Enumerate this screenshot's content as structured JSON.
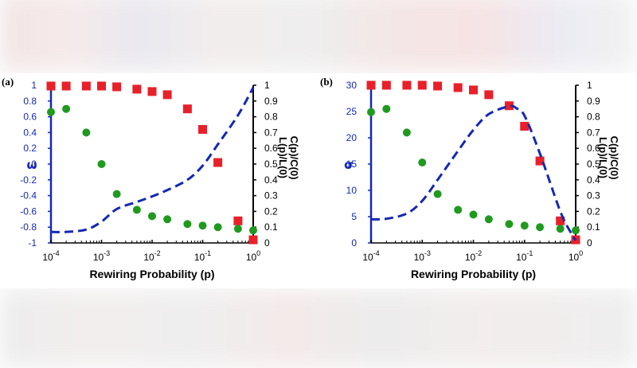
{
  "chart_data": [
    {
      "panel_label": "(a)",
      "type": "scatter+line",
      "xlabel": "Rewiring Probability (p)",
      "xscale": "log",
      "xlim": [
        0.0001,
        1
      ],
      "x_tick_base": [
        "10",
        "10",
        "10",
        "10",
        "10"
      ],
      "x_tick_exp": [
        "-4",
        "-3",
        "-2",
        "-1",
        "0"
      ],
      "x_tick_values": [
        0.0001,
        0.001,
        0.01,
        0.1,
        1
      ],
      "left_axis": {
        "label": "ω",
        "ylim": [
          -1,
          1
        ],
        "ticks": [
          1,
          0.8,
          0.6,
          0.4,
          0.2,
          0,
          -0.2,
          -0.4,
          -0.6,
          -0.8,
          -1
        ],
        "tick_labels": [
          "1",
          "0.8",
          "0.6",
          "0.4",
          "0.2",
          "0",
          "-0.2",
          "-0.4",
          "-0.6",
          "-0.8",
          "-1"
        ]
      },
      "right_axis": {
        "label_top": "C(p)/C(0)",
        "label_bottom": "L(p)/L(0)",
        "ylim": [
          0,
          1
        ],
        "ticks": [
          1,
          0.9,
          0.8,
          0.7,
          0.6,
          0.5,
          0.4,
          0.3,
          0.2,
          0.1,
          0
        ],
        "tick_labels": [
          "1",
          "0.9",
          "0.8",
          "0.7",
          "0.6",
          "0.5",
          "0.4",
          "0.3",
          "0.2",
          "0.1",
          "0"
        ]
      },
      "series": [
        {
          "name": "C(p)/C(0)",
          "marker": "square",
          "color": "#e8202a",
          "axis": "right",
          "x": [
            0.0001,
            0.0002,
            0.0005,
            0.001,
            0.002,
            0.005,
            0.01,
            0.02,
            0.05,
            0.1,
            0.2,
            0.5,
            1
          ],
          "y": [
            0.995,
            0.995,
            0.995,
            0.995,
            0.99,
            0.975,
            0.96,
            0.94,
            0.85,
            0.72,
            0.51,
            0.14,
            0.02
          ]
        },
        {
          "name": "L(p)/L(0)",
          "marker": "circle",
          "color": "#1f9a1f",
          "axis": "right",
          "x": [
            0.0001,
            0.0002,
            0.0005,
            0.001,
            0.002,
            0.005,
            0.01,
            0.02,
            0.05,
            0.1,
            0.2,
            0.5,
            1
          ],
          "y": [
            0.83,
            0.85,
            0.7,
            0.5,
            0.31,
            0.21,
            0.17,
            0.15,
            0.12,
            0.11,
            0.1,
            0.09,
            0.08
          ]
        },
        {
          "name": "ω",
          "marker": "none",
          "line": "dashed",
          "color": "#1428b4",
          "axis": "left",
          "x": [
            0.0001,
            0.0002,
            0.0005,
            0.001,
            0.002,
            0.005,
            0.01,
            0.02,
            0.05,
            0.1,
            0.2,
            0.5,
            1
          ],
          "y": [
            -0.86,
            -0.86,
            -0.83,
            -0.73,
            -0.57,
            -0.48,
            -0.41,
            -0.33,
            -0.2,
            -0.02,
            0.25,
            0.62,
            0.97
          ]
        }
      ]
    },
    {
      "panel_label": "(b)",
      "type": "scatter+line",
      "xlabel": "Rewiring Probability (p)",
      "xscale": "log",
      "xlim": [
        0.0001,
        1
      ],
      "x_tick_base": [
        "10",
        "10",
        "10",
        "10",
        "10"
      ],
      "x_tick_exp": [
        "-4",
        "-3",
        "-2",
        "-1",
        "0"
      ],
      "x_tick_values": [
        0.0001,
        0.001,
        0.01,
        0.1,
        1
      ],
      "left_axis": {
        "label": "σ",
        "ylim": [
          0,
          30
        ],
        "ticks": [
          30,
          25,
          20,
          15,
          10,
          5,
          0
        ],
        "tick_labels": [
          "30",
          "25",
          "20",
          "15",
          "10",
          "5",
          "0"
        ]
      },
      "right_axis": {
        "label_top": "C(p)/C(0)",
        "label_bottom": "L(p)/L(0)",
        "ylim": [
          0,
          1
        ],
        "ticks": [
          1,
          0.9,
          0.8,
          0.7,
          0.6,
          0.5,
          0.4,
          0.3,
          0.2,
          0.1,
          0
        ],
        "tick_labels": [
          "1",
          "0.9",
          "0.8",
          "0.7",
          "0.6",
          "0.5",
          "0.4",
          "0.3",
          "0.2",
          "0.1",
          "0"
        ]
      },
      "series": [
        {
          "name": "C(p)/C(0)",
          "marker": "square",
          "color": "#e8202a",
          "axis": "right",
          "x": [
            0.0001,
            0.0002,
            0.0005,
            0.001,
            0.002,
            0.005,
            0.01,
            0.02,
            0.05,
            0.1,
            0.2,
            0.5,
            1
          ],
          "y": [
            1.0,
            1.0,
            1.0,
            1.0,
            0.995,
            0.985,
            0.97,
            0.94,
            0.87,
            0.74,
            0.52,
            0.14,
            0.02
          ]
        },
        {
          "name": "L(p)/L(0)",
          "marker": "circle",
          "color": "#1f9a1f",
          "axis": "right",
          "x": [
            0.0001,
            0.0002,
            0.0005,
            0.001,
            0.002,
            0.005,
            0.01,
            0.02,
            0.05,
            0.1,
            0.2,
            0.5,
            1
          ],
          "y": [
            0.83,
            0.85,
            0.7,
            0.51,
            0.31,
            0.21,
            0.18,
            0.15,
            0.12,
            0.11,
            0.1,
            0.09,
            0.08
          ]
        },
        {
          "name": "σ",
          "marker": "none",
          "line": "dashed",
          "color": "#1428b4",
          "axis": "left",
          "x": [
            0.0001,
            0.0002,
            0.0005,
            0.001,
            0.002,
            0.005,
            0.01,
            0.02,
            0.05,
            0.07,
            0.1,
            0.2,
            0.5,
            0.8,
            1
          ],
          "y": [
            4.5,
            4.6,
            5.6,
            8,
            12,
            17.5,
            21.5,
            24.5,
            26,
            25.6,
            24.2,
            17,
            6,
            2,
            0.5
          ]
        }
      ]
    }
  ]
}
